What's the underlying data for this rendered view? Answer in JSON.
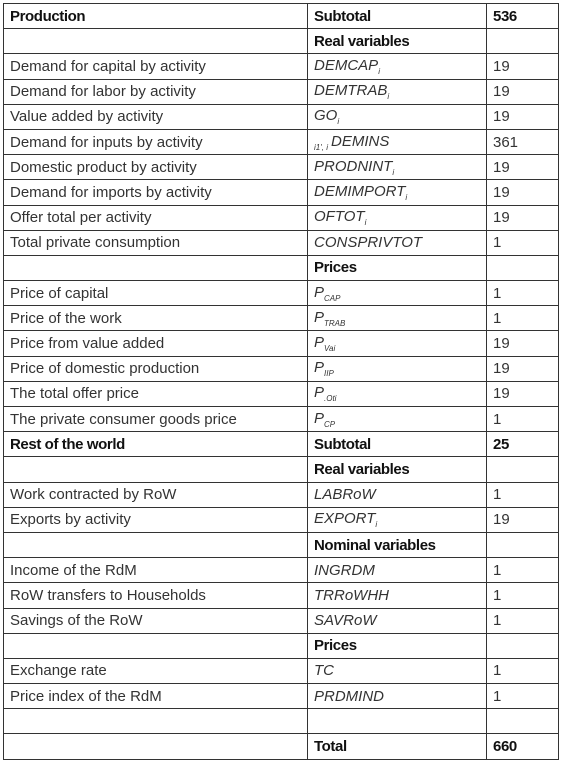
{
  "rows": [
    {
      "label": "Production",
      "subtotal": "Subtotal",
      "count": 536
    },
    {
      "heading": "Real variables"
    },
    {
      "label": "Demand for capital by activity",
      "var": "DEMCAP",
      "sub": "i",
      "count": 19
    },
    {
      "label": "Demand for labor by activity",
      "var": "DEMTRAB",
      "sub": "i",
      "count": 19
    },
    {
      "label": "Value added by activity",
      "var": "GO",
      "sub": "i",
      "count": 19
    },
    {
      "label": "Demand for inputs by activity",
      "pre": "i1', i",
      "var": "DEMINS",
      "count": 361
    },
    {
      "label": "Domestic product by activity",
      "var": "PRODNINT",
      "sub": "i",
      "count": 19
    },
    {
      "label": "Demand for imports by activity",
      "var": "DEMIMPORT",
      "sub": "i",
      "count": 19
    },
    {
      "label": "Offer total per activity",
      "var": "OFTOT",
      "sub": "i",
      "count": 19
    },
    {
      "label": "Total private consumption",
      "var": "CONSPRIVTOT",
      "count": 1
    },
    {
      "heading": "Prices"
    },
    {
      "label": "Price of capital",
      "var": "P",
      "sub": "CAP",
      "count": 1
    },
    {
      "label": "Price of the work",
      "var": "P",
      "sub": "TRAB",
      "count": 1
    },
    {
      "label": "Price from value added",
      "var": "P",
      "sub": "Vai",
      "count": 19
    },
    {
      "label": "Price of domestic production",
      "var": "P",
      "sub": "IIP",
      "count": 19
    },
    {
      "label": "The total offer price",
      "var": "P",
      "sub": ".Oti",
      "count": 19
    },
    {
      "label": "The private consumer goods price",
      "var": "P",
      "sub": "CP",
      "count": 1
    },
    {
      "label": "Rest of the world",
      "subtotal": "Subtotal",
      "count": 25
    },
    {
      "heading": "Real variables"
    },
    {
      "label": "Work contracted by RoW",
      "var": "LABRoW",
      "count": 1
    },
    {
      "label": "Exports by activity",
      "var": "EXPORT",
      "sub": "i",
      "count": 19
    },
    {
      "heading": "Nominal variables"
    },
    {
      "label": "Income of the RdM",
      "var": "INGRDM",
      "count": 1
    },
    {
      "label": "RoW transfers to Households",
      "var": "TRRoWHH",
      "count": 1
    },
    {
      "label": "Savings of the RoW",
      "var": "SAVRoW",
      "count": 1
    },
    {
      "heading": "Prices"
    },
    {
      "label": "Exchange rate",
      "var": "TC",
      "count": 1
    },
    {
      "label": "Price index of the RdM",
      "var": "PRDMIND",
      "count": 1
    }
  ],
  "total": {
    "label": "Total",
    "count": 660
  }
}
